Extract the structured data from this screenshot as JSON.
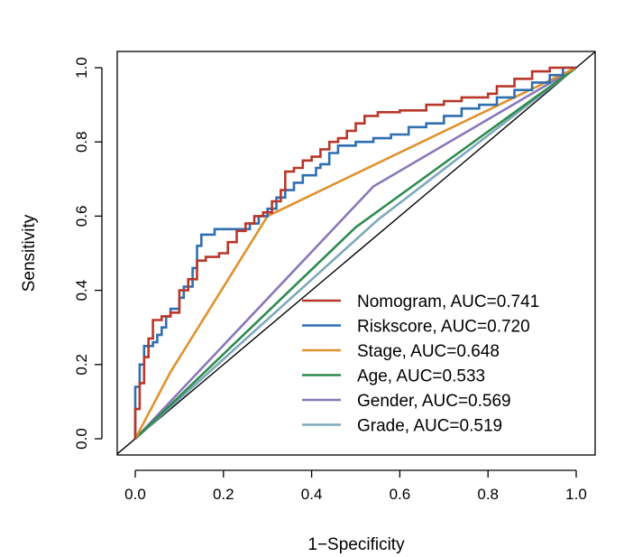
{
  "chart_data": {
    "type": "line",
    "xlabel": "1−Specificity",
    "ylabel": "Sensitivity",
    "xlim": [
      0,
      1
    ],
    "ylim": [
      0,
      1
    ],
    "x_ticks": [
      0.0,
      0.2,
      0.4,
      0.6,
      0.8,
      1.0
    ],
    "y_ticks": [
      0.0,
      0.2,
      0.4,
      0.6,
      0.8,
      1.0
    ],
    "x_tick_labels": [
      "0.0",
      "0.2",
      "0.4",
      "0.6",
      "0.8",
      "1.0"
    ],
    "y_tick_labels": [
      "0.0",
      "0.2",
      "0.4",
      "0.6",
      "0.8",
      "1.0"
    ],
    "legend_position": "bottom-right",
    "reference_line": {
      "x": [
        0,
        1
      ],
      "y": [
        0,
        1
      ],
      "color": "#000000"
    },
    "series": [
      {
        "name": "Nomogram, AUC=0.741",
        "color": "#b8372a",
        "points": [
          [
            0,
            0
          ],
          [
            0,
            0.08
          ],
          [
            0.01,
            0.08
          ],
          [
            0.01,
            0.15
          ],
          [
            0.02,
            0.15
          ],
          [
            0.02,
            0.22
          ],
          [
            0.03,
            0.22
          ],
          [
            0.03,
            0.27
          ],
          [
            0.04,
            0.27
          ],
          [
            0.04,
            0.32
          ],
          [
            0.06,
            0.32
          ],
          [
            0.06,
            0.33
          ],
          [
            0.08,
            0.33
          ],
          [
            0.08,
            0.34
          ],
          [
            0.1,
            0.34
          ],
          [
            0.1,
            0.4
          ],
          [
            0.12,
            0.4
          ],
          [
            0.12,
            0.43
          ],
          [
            0.14,
            0.43
          ],
          [
            0.14,
            0.48
          ],
          [
            0.16,
            0.48
          ],
          [
            0.16,
            0.49
          ],
          [
            0.19,
            0.49
          ],
          [
            0.19,
            0.5
          ],
          [
            0.21,
            0.5
          ],
          [
            0.21,
            0.53
          ],
          [
            0.23,
            0.53
          ],
          [
            0.23,
            0.56
          ],
          [
            0.25,
            0.56
          ],
          [
            0.25,
            0.58
          ],
          [
            0.27,
            0.58
          ],
          [
            0.27,
            0.6
          ],
          [
            0.29,
            0.6
          ],
          [
            0.29,
            0.61
          ],
          [
            0.31,
            0.61
          ],
          [
            0.31,
            0.64
          ],
          [
            0.33,
            0.64
          ],
          [
            0.33,
            0.67
          ],
          [
            0.34,
            0.67
          ],
          [
            0.34,
            0.72
          ],
          [
            0.36,
            0.72
          ],
          [
            0.36,
            0.73
          ],
          [
            0.38,
            0.73
          ],
          [
            0.38,
            0.75
          ],
          [
            0.4,
            0.75
          ],
          [
            0.4,
            0.76
          ],
          [
            0.42,
            0.76
          ],
          [
            0.42,
            0.78
          ],
          [
            0.44,
            0.78
          ],
          [
            0.44,
            0.8
          ],
          [
            0.46,
            0.8
          ],
          [
            0.46,
            0.81
          ],
          [
            0.48,
            0.81
          ],
          [
            0.48,
            0.83
          ],
          [
            0.5,
            0.83
          ],
          [
            0.5,
            0.85
          ],
          [
            0.52,
            0.85
          ],
          [
            0.52,
            0.87
          ],
          [
            0.55,
            0.87
          ],
          [
            0.55,
            0.88
          ],
          [
            0.6,
            0.88
          ],
          [
            0.6,
            0.885
          ],
          [
            0.66,
            0.885
          ],
          [
            0.66,
            0.9
          ],
          [
            0.7,
            0.9
          ],
          [
            0.7,
            0.91
          ],
          [
            0.74,
            0.91
          ],
          [
            0.74,
            0.92
          ],
          [
            0.8,
            0.92
          ],
          [
            0.8,
            0.93
          ],
          [
            0.82,
            0.93
          ],
          [
            0.82,
            0.95
          ],
          [
            0.86,
            0.95
          ],
          [
            0.86,
            0.97
          ],
          [
            0.9,
            0.97
          ],
          [
            0.9,
            0.99
          ],
          [
            0.94,
            0.99
          ],
          [
            0.94,
            1
          ],
          [
            1,
            1
          ]
        ]
      },
      {
        "name": "Riskscore, AUC=0.720",
        "color": "#2f6fb0",
        "points": [
          [
            0,
            0
          ],
          [
            0,
            0.14
          ],
          [
            0.01,
            0.14
          ],
          [
            0.01,
            0.2
          ],
          [
            0.02,
            0.2
          ],
          [
            0.02,
            0.25
          ],
          [
            0.04,
            0.25
          ],
          [
            0.04,
            0.26
          ],
          [
            0.05,
            0.26
          ],
          [
            0.05,
            0.28
          ],
          [
            0.06,
            0.28
          ],
          [
            0.06,
            0.3
          ],
          [
            0.07,
            0.3
          ],
          [
            0.07,
            0.33
          ],
          [
            0.08,
            0.33
          ],
          [
            0.08,
            0.35
          ],
          [
            0.1,
            0.35
          ],
          [
            0.1,
            0.38
          ],
          [
            0.11,
            0.38
          ],
          [
            0.11,
            0.41
          ],
          [
            0.13,
            0.41
          ],
          [
            0.13,
            0.46
          ],
          [
            0.14,
            0.46
          ],
          [
            0.14,
            0.52
          ],
          [
            0.15,
            0.52
          ],
          [
            0.15,
            0.55
          ],
          [
            0.18,
            0.55
          ],
          [
            0.18,
            0.565
          ],
          [
            0.26,
            0.565
          ],
          [
            0.26,
            0.58
          ],
          [
            0.28,
            0.58
          ],
          [
            0.28,
            0.6
          ],
          [
            0.3,
            0.6
          ],
          [
            0.3,
            0.62
          ],
          [
            0.32,
            0.62
          ],
          [
            0.32,
            0.65
          ],
          [
            0.34,
            0.65
          ],
          [
            0.34,
            0.67
          ],
          [
            0.36,
            0.67
          ],
          [
            0.36,
            0.69
          ],
          [
            0.38,
            0.69
          ],
          [
            0.38,
            0.71
          ],
          [
            0.41,
            0.71
          ],
          [
            0.41,
            0.73
          ],
          [
            0.42,
            0.73
          ],
          [
            0.42,
            0.74
          ],
          [
            0.44,
            0.74
          ],
          [
            0.44,
            0.77
          ],
          [
            0.46,
            0.77
          ],
          [
            0.46,
            0.79
          ],
          [
            0.5,
            0.79
          ],
          [
            0.5,
            0.8
          ],
          [
            0.54,
            0.8
          ],
          [
            0.54,
            0.81
          ],
          [
            0.58,
            0.81
          ],
          [
            0.58,
            0.82
          ],
          [
            0.62,
            0.82
          ],
          [
            0.62,
            0.84
          ],
          [
            0.66,
            0.84
          ],
          [
            0.66,
            0.85
          ],
          [
            0.7,
            0.85
          ],
          [
            0.7,
            0.87
          ],
          [
            0.74,
            0.87
          ],
          [
            0.74,
            0.89
          ],
          [
            0.78,
            0.89
          ],
          [
            0.78,
            0.9
          ],
          [
            0.82,
            0.9
          ],
          [
            0.82,
            0.92
          ],
          [
            0.86,
            0.92
          ],
          [
            0.86,
            0.94
          ],
          [
            0.9,
            0.94
          ],
          [
            0.9,
            0.96
          ],
          [
            0.94,
            0.96
          ],
          [
            0.94,
            0.98
          ],
          [
            0.97,
            0.98
          ],
          [
            0.97,
            1
          ],
          [
            1,
            1
          ]
        ]
      },
      {
        "name": "Stage, AUC=0.648",
        "color": "#e0922e",
        "points": [
          [
            0,
            0
          ],
          [
            0.08,
            0.18
          ],
          [
            0.3,
            0.6
          ],
          [
            1,
            1
          ]
        ]
      },
      {
        "name": "Age, AUC=0.533",
        "color": "#2e8a4e",
        "points": [
          [
            0,
            0
          ],
          [
            0.5,
            0.57
          ],
          [
            1,
            1
          ]
        ]
      },
      {
        "name": "Gender, AUC=0.569",
        "color": "#8a78b8",
        "points": [
          [
            0,
            0
          ],
          [
            0.54,
            0.68
          ],
          [
            1,
            1
          ]
        ]
      },
      {
        "name": "Grade, AUC=0.519",
        "color": "#7ea9bb",
        "points": [
          [
            0,
            0
          ],
          [
            0.55,
            0.59
          ],
          [
            1,
            1
          ]
        ]
      }
    ]
  }
}
